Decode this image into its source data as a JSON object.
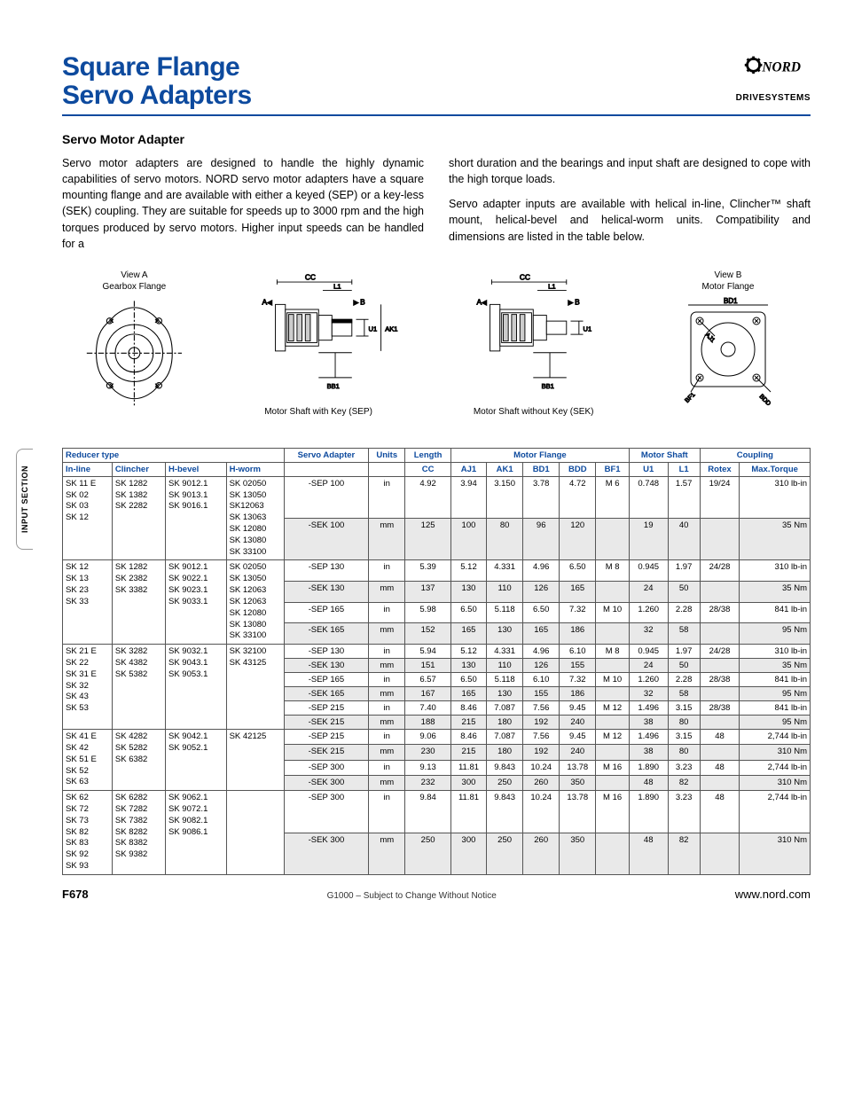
{
  "sideTab": "INPUT SECTION",
  "header": {
    "title_line1": "Square Flange",
    "title_line2": "Servo Adapters",
    "logo_text": "NORD",
    "logo_sub": "DRIVESYSTEMS",
    "title_color": "#0d4a9e"
  },
  "section_title": "Servo Motor Adapter",
  "paragraphs": {
    "left": "Servo motor adapters are designed to handle the highly dynamic capabilities of servo motors.  NORD servo motor adapters have a square mounting flange and are available with either a keyed (SEP) or a key-less (SEK) coupling.  They are suitable for speeds up to 3000 rpm and the high torques produced by servo motors.  Higher input speeds can be handled for a",
    "right1": "short duration and the bearings and input shaft are designed to cope with the high torque loads.",
    "right2": "Servo adapter inputs are available with helical in-line, Clincher™ shaft mount, helical-bevel and helical-worm units.  Compatibility and dimensions are listed in the table below."
  },
  "diagrams": {
    "d1_title": "View  A\nGearbox  Flange",
    "d2_label": "Motor  Shaft  with  Key (SEP)",
    "d3_label": "Motor  Shaft  without  Key (SEK)",
    "d4_title": "View  B\nMotor  Flange",
    "labels": {
      "CC": "CC",
      "L1": "L1",
      "A": "A",
      "B": "B",
      "U1": "U1",
      "AK1": "AK1",
      "BB1": "BB1",
      "BD1": "BD1",
      "AJ1": "AJ1",
      "BF1": "BF1",
      "BDD": "BDD"
    }
  },
  "table": {
    "group_headers": [
      "Reducer type",
      "Servo Adapter",
      "Units",
      "Length",
      "Motor Flange",
      "Motor Shaft",
      "Coupling"
    ],
    "sub_headers": [
      "In-line",
      "Clincher",
      "H-bevel",
      "H-worm",
      "",
      "",
      "CC",
      "AJ1",
      "AK1",
      "BD1",
      "BDD",
      "BF1",
      "U1",
      "L1",
      "Rotex",
      "Max.Torque"
    ],
    "rows": [
      {
        "alt": false,
        "inline": "SK 11 E\nSK 02\nSK 03\nSK 12",
        "clincher": "SK 1282\nSK 1382\nSK 2282",
        "hbevel": "SK 9012.1\nSK 9013.1\nSK 9016.1",
        "hworm": "SK 02050\nSK 13050\nSK12063\nSK 13063\nSK 12080\nSK 13080\nSK 33100",
        "adapters": [
          "-SEP 100",
          "-SEK 100"
        ],
        "units": [
          "in",
          "mm"
        ],
        "CC": [
          "4.92",
          "125"
        ],
        "AJ1": [
          "3.94",
          "100"
        ],
        "AK1": [
          "3.150",
          "80"
        ],
        "BD1": [
          "3.78",
          "96"
        ],
        "BDD": [
          "4.72",
          "120"
        ],
        "BF1": [
          "M 6",
          ""
        ],
        "U1": [
          "0.748",
          "19"
        ],
        "L1": [
          "1.57",
          "40"
        ],
        "Rotex": [
          "19/24",
          ""
        ],
        "Max": [
          "310 lb-in",
          "35 Nm"
        ]
      },
      {
        "alt": false,
        "inline": "SK 12\nSK 13\nSK 23\nSK 33",
        "clincher": "SK 1282\nSK 2382\nSK 3382",
        "hbevel": "SK 9012.1\nSK 9022.1\nSK 9023.1\nSK 9033.1",
        "hworm": "SK 02050\nSK 13050\nSK 12063\nSK 12063\nSK 12080\nSK 13080\nSK 33100",
        "adapters": [
          "-SEP 130",
          "-SEK 130",
          "-SEP 165",
          "-SEK 165"
        ],
        "units": [
          "in",
          "mm",
          "in",
          "mm"
        ],
        "CC": [
          "5.39",
          "137",
          "5.98",
          "152"
        ],
        "AJ1": [
          "5.12",
          "130",
          "6.50",
          "165"
        ],
        "AK1": [
          "4.331",
          "110",
          "5.118",
          "130"
        ],
        "BD1": [
          "4.96",
          "126",
          "6.50",
          "165"
        ],
        "BDD": [
          "6.50",
          "165",
          "7.32",
          "186"
        ],
        "BF1": [
          "M 8",
          "",
          "M 10",
          ""
        ],
        "U1": [
          "0.945",
          "24",
          "1.260",
          "32"
        ],
        "L1": [
          "1.97",
          "50",
          "2.28",
          "58"
        ],
        "Rotex": [
          "24/28",
          "",
          "28/38",
          ""
        ],
        "Max": [
          "310 lb-in",
          "35 Nm",
          "841 lb-in",
          "95 Nm"
        ]
      },
      {
        "alt": false,
        "inline": "SK 21 E\nSK 22\nSK 31 E\nSK 32\nSK 43\nSK 53",
        "clincher": "SK 3282\nSK 4382\nSK 5382",
        "hbevel": "SK 9032.1\nSK 9043.1\nSK 9053.1",
        "hworm": "SK 32100\nSK 43125",
        "adapters": [
          "-SEP 130",
          "-SEK 130",
          "-SEP 165",
          "-SEK 165",
          "-SEP 215",
          "-SEK 215"
        ],
        "units": [
          "in",
          "mm",
          "in",
          "mm",
          "in",
          "mm"
        ],
        "CC": [
          "5.94",
          "151",
          "6.57",
          "167",
          "7.40",
          "188"
        ],
        "AJ1": [
          "5.12",
          "130",
          "6.50",
          "165",
          "8.46",
          "215"
        ],
        "AK1": [
          "4.331",
          "110",
          "5.118",
          "130",
          "7.087",
          "180"
        ],
        "BD1": [
          "4.96",
          "126",
          "6.10",
          "155",
          "7.56",
          "192"
        ],
        "BDD": [
          "6.10",
          "155",
          "7.32",
          "186",
          "9.45",
          "240"
        ],
        "BF1": [
          "M 8",
          "",
          "M 10",
          "",
          "M 12",
          ""
        ],
        "U1": [
          "0.945",
          "24",
          "1.260",
          "32",
          "1.496",
          "38"
        ],
        "L1": [
          "1.97",
          "50",
          "2.28",
          "58",
          "3.15",
          "80"
        ],
        "Rotex": [
          "24/28",
          "",
          "28/38",
          "",
          "28/38",
          ""
        ],
        "Max": [
          "310 lb-in",
          "35 Nm",
          "841 lb-in",
          "95 Nm",
          "841 lb-in",
          "95 Nm"
        ]
      },
      {
        "alt": false,
        "inline": "SK 41 E\nSK 42\nSK 51 E\nSK 52\nSK 63",
        "clincher": "SK 4282\nSK 5282\nSK 6382",
        "hbevel": "SK 9042.1\nSK 9052.1",
        "hworm": "SK 42125",
        "adapters": [
          "-SEP 215",
          "-SEK 215",
          "-SEP 300",
          "-SEK 300"
        ],
        "units": [
          "in",
          "mm",
          "in",
          "mm"
        ],
        "CC": [
          "9.06",
          "230",
          "9.13",
          "232"
        ],
        "AJ1": [
          "8.46",
          "215",
          "11.81",
          "300"
        ],
        "AK1": [
          "7.087",
          "180",
          "9.843",
          "250"
        ],
        "BD1": [
          "7.56",
          "192",
          "10.24",
          "260"
        ],
        "BDD": [
          "9.45",
          "240",
          "13.78",
          "350"
        ],
        "BF1": [
          "M 12",
          "",
          "M 16",
          ""
        ],
        "U1": [
          "1.496",
          "38",
          "1.890",
          "48"
        ],
        "L1": [
          "3.15",
          "80",
          "3.23",
          "82"
        ],
        "Rotex": [
          "48",
          "",
          "48",
          ""
        ],
        "Max": [
          "2,744 lb-in",
          "310 Nm",
          "2,744 lb-in",
          "310 Nm"
        ]
      },
      {
        "alt": false,
        "inline": "SK 62\nSK 72\nSK 73\nSK 82\nSK 83\nSK 92\nSK 93",
        "clincher": "SK 6282\nSK 7282\nSK 7382\nSK 8282\nSK 8382\nSK 9382",
        "hbevel": "SK 9062.1\nSK 9072.1\nSK 9082.1\nSK 9086.1",
        "hworm": "",
        "adapters": [
          "-SEP 300",
          "-SEK 300"
        ],
        "units": [
          "in",
          "mm"
        ],
        "CC": [
          "9.84",
          "250"
        ],
        "AJ1": [
          "11.81",
          "300"
        ],
        "AK1": [
          "9.843",
          "250"
        ],
        "BD1": [
          "10.24",
          "260"
        ],
        "BDD": [
          "13.78",
          "350"
        ],
        "BF1": [
          "M 16",
          ""
        ],
        "U1": [
          "1.890",
          "48"
        ],
        "L1": [
          "3.23",
          "82"
        ],
        "Rotex": [
          "48",
          ""
        ],
        "Max": [
          "2,744 lb-in",
          "310 Nm"
        ]
      }
    ]
  },
  "footer": {
    "page": "F678",
    "mid": "G1000 – Subject to Change Without Notice",
    "url": "www.nord.com"
  },
  "style": {
    "accent": "#0d4a9e",
    "alt_bg": "#e9e9e9",
    "border": "#555555",
    "body_font_size": 12.5,
    "table_font_size": 9.5
  }
}
